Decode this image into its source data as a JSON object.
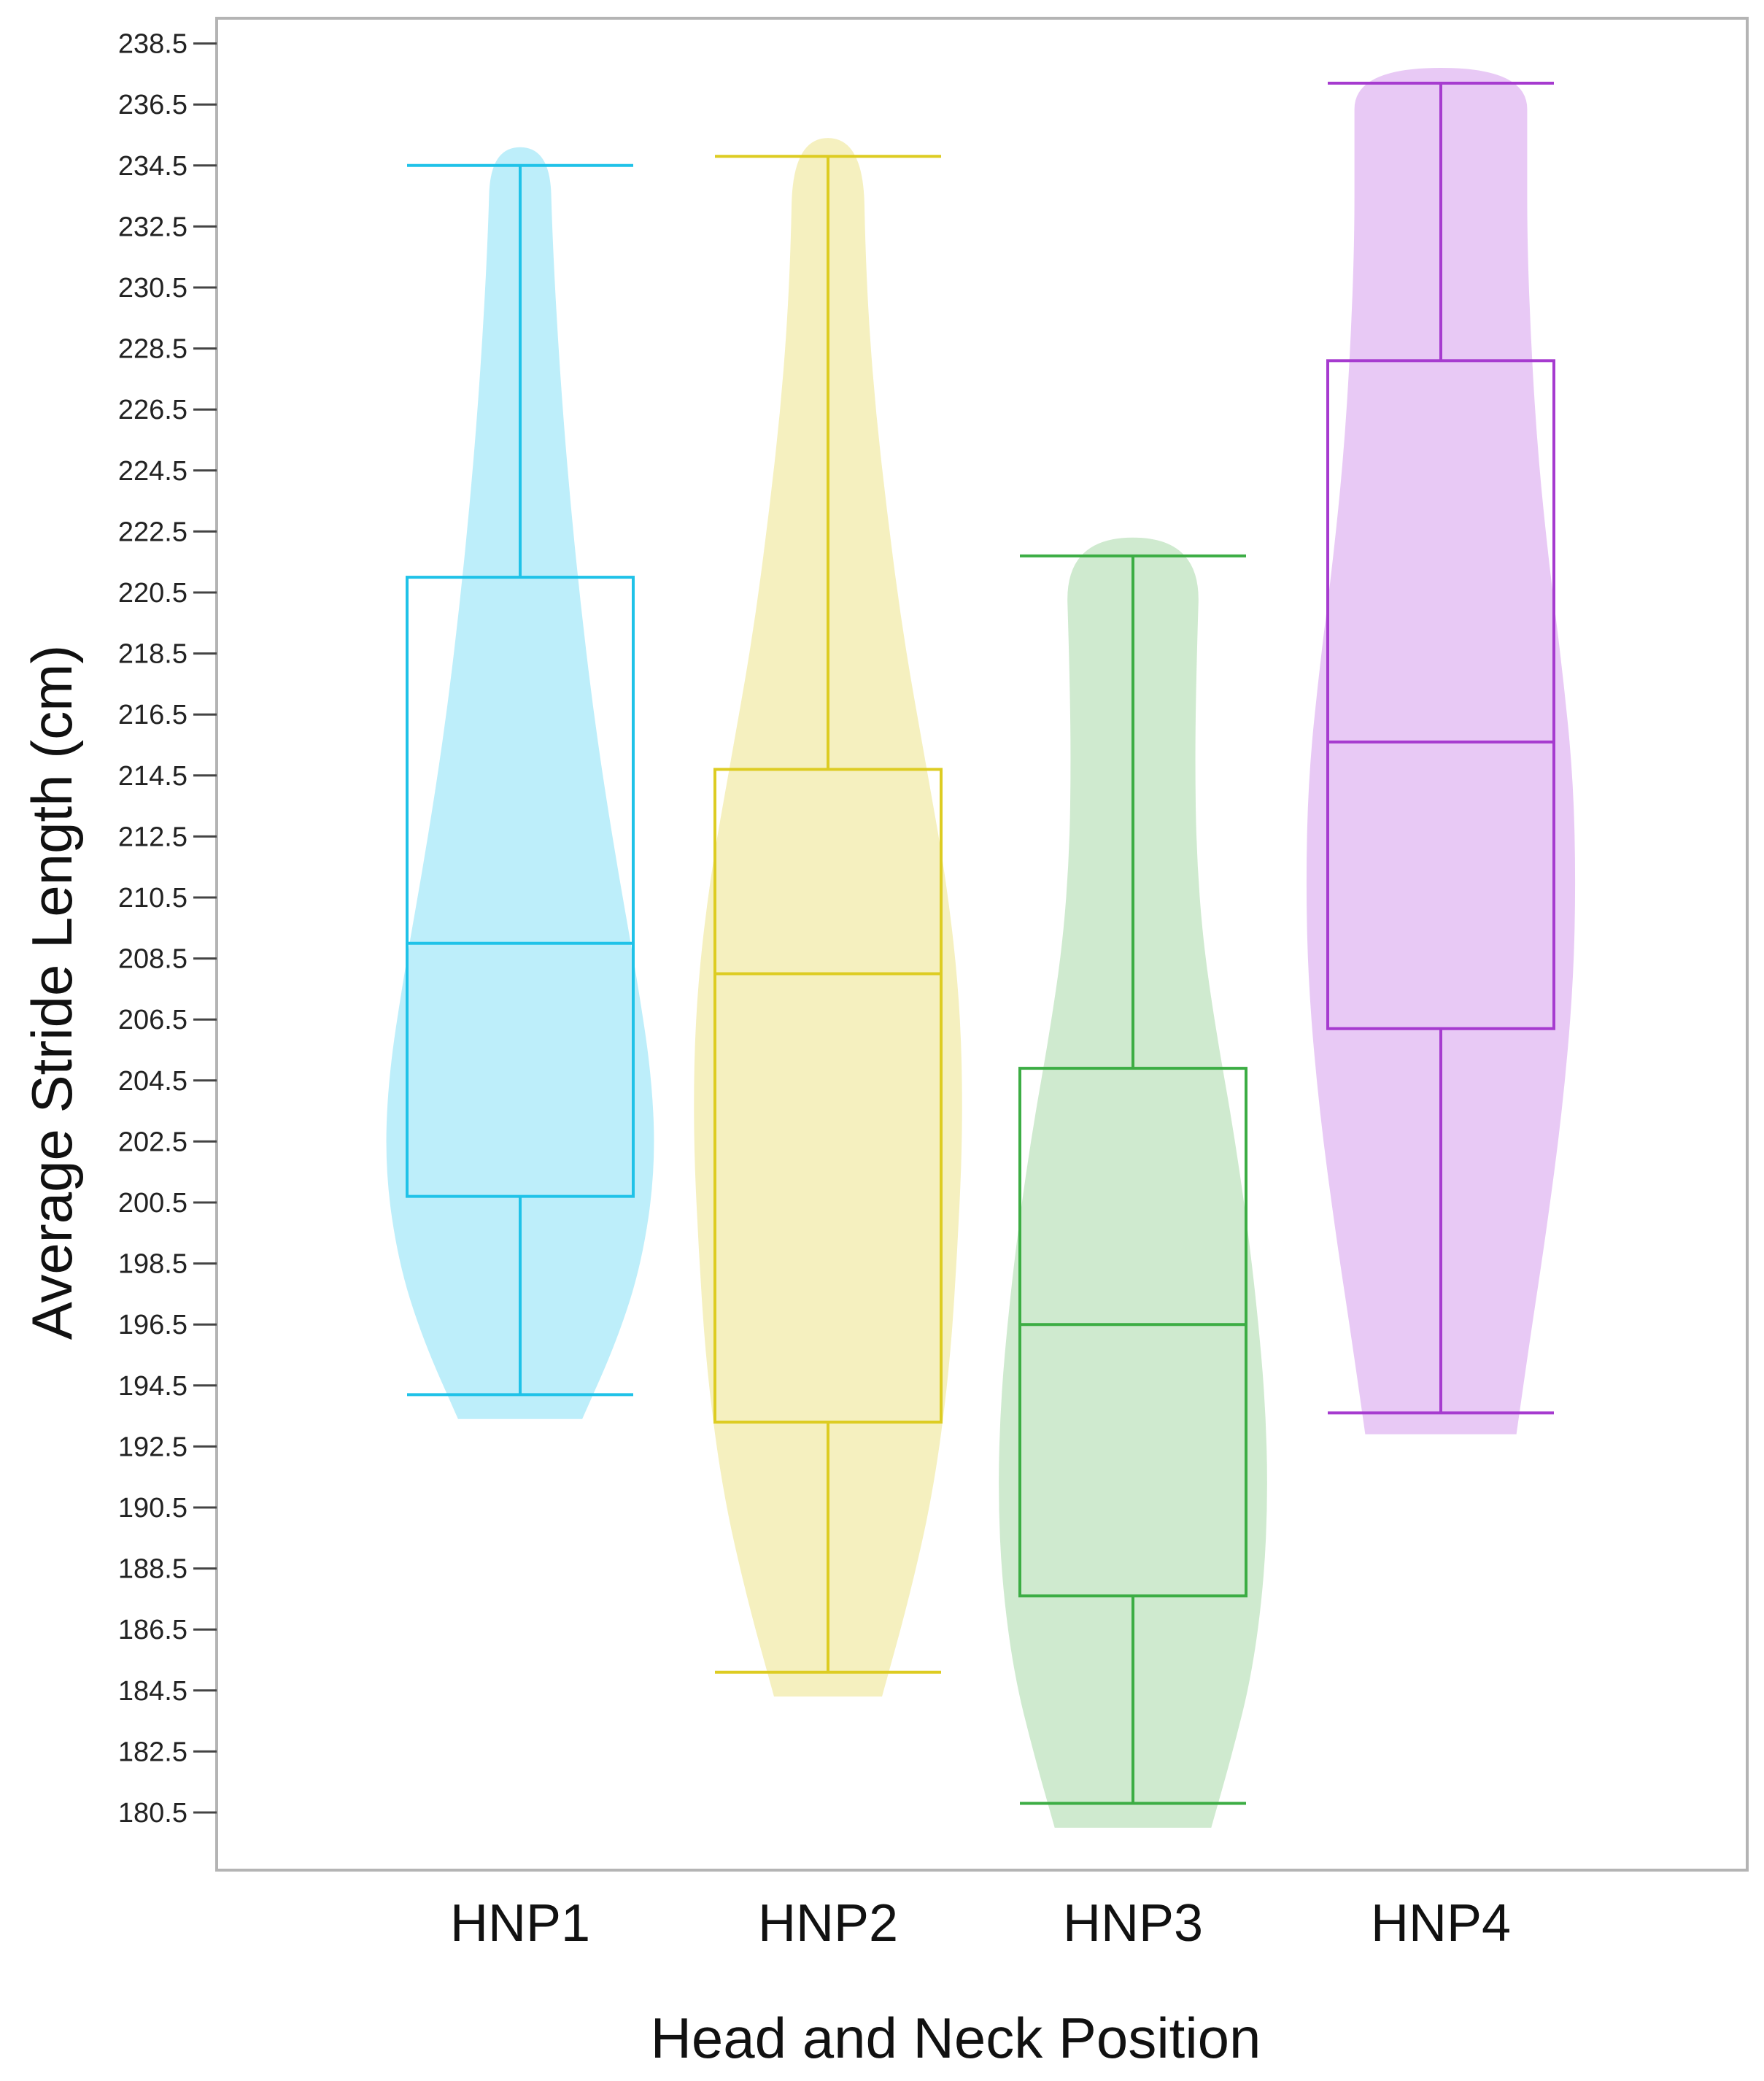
{
  "chart_data": {
    "type": "violin-box",
    "xlabel": "Head and Neck Position",
    "ylabel": "Average Stride Length (cm)",
    "ylim": [
      179.5,
      240.0
    ],
    "yticks": [
      180.5,
      182.5,
      184.5,
      186.5,
      188.5,
      190.5,
      192.5,
      194.5,
      196.5,
      198.5,
      200.5,
      202.5,
      204.5,
      206.5,
      208.5,
      210.5,
      212.5,
      214.5,
      216.5,
      218.5,
      220.5,
      222.5,
      224.5,
      226.5,
      228.5,
      230.5,
      232.5,
      234.5,
      236.5,
      238.5
    ],
    "grid": false,
    "legend": "none",
    "categories": [
      "HNP1",
      "HNP2",
      "HNP3",
      "HNP4"
    ],
    "series": [
      {
        "category": "HNP1",
        "box_color": "#1fc2e8",
        "violin_color": "#bdeefa",
        "whisker_low": 194.2,
        "q1": 200.7,
        "median": 209.0,
        "q3": 221.0,
        "whisker_high": 234.5,
        "violin_min": 193.4,
        "violin_max": 235.1,
        "violin_profile": [
          [
            193.4,
            0.46
          ],
          [
            196.0,
            0.72
          ],
          [
            198.5,
            0.9
          ],
          [
            201.5,
            1.0
          ],
          [
            204.5,
            0.98
          ],
          [
            208.0,
            0.86
          ],
          [
            212.0,
            0.7
          ],
          [
            216.0,
            0.56
          ],
          [
            220.0,
            0.45
          ],
          [
            224.0,
            0.36
          ],
          [
            228.0,
            0.29
          ],
          [
            232.0,
            0.24
          ],
          [
            235.1,
            0.22
          ]
        ]
      },
      {
        "category": "HNP2",
        "box_color": "#ddcc22",
        "violin_color": "#f5f0bf",
        "whisker_low": 185.1,
        "q1": 193.3,
        "median": 208.0,
        "q3": 214.7,
        "whisker_high": 234.8,
        "violin_min": 184.3,
        "violin_max": 235.4,
        "violin_profile": [
          [
            184.3,
            0.4
          ],
          [
            187.5,
            0.6
          ],
          [
            191.0,
            0.78
          ],
          [
            195.0,
            0.9
          ],
          [
            199.0,
            0.96
          ],
          [
            203.0,
            1.0
          ],
          [
            207.0,
            0.98
          ],
          [
            211.0,
            0.88
          ],
          [
            215.0,
            0.72
          ],
          [
            219.0,
            0.56
          ],
          [
            223.0,
            0.44
          ],
          [
            227.0,
            0.34
          ],
          [
            231.0,
            0.28
          ],
          [
            235.4,
            0.26
          ]
        ]
      },
      {
        "category": "HNP3",
        "box_color": "#3cad44",
        "violin_color": "#cfeacf",
        "whisker_low": 180.8,
        "q1": 187.6,
        "median": 196.5,
        "q3": 204.9,
        "whisker_high": 221.7,
        "violin_min": 180.0,
        "violin_max": 222.3,
        "violin_profile": [
          [
            180.0,
            0.58
          ],
          [
            182.5,
            0.74
          ],
          [
            185.0,
            0.88
          ],
          [
            188.0,
            0.97
          ],
          [
            191.0,
            1.0
          ],
          [
            194.0,
            0.98
          ],
          [
            197.0,
            0.92
          ],
          [
            200.0,
            0.84
          ],
          [
            203.0,
            0.74
          ],
          [
            206.0,
            0.62
          ],
          [
            209.0,
            0.52
          ],
          [
            212.0,
            0.47
          ],
          [
            215.0,
            0.46
          ],
          [
            218.0,
            0.47
          ],
          [
            222.3,
            0.5
          ]
        ]
      },
      {
        "category": "HNP4",
        "box_color": "#a63bcf",
        "violin_color": "#e8c9f5",
        "whisker_low": 193.6,
        "q1": 206.2,
        "median": 215.6,
        "q3": 228.1,
        "whisker_high": 237.2,
        "violin_min": 192.9,
        "violin_max": 237.7,
        "violin_profile": [
          [
            192.9,
            0.56
          ],
          [
            196.0,
            0.66
          ],
          [
            199.5,
            0.78
          ],
          [
            203.5,
            0.9
          ],
          [
            207.5,
            0.98
          ],
          [
            211.0,
            1.0
          ],
          [
            214.5,
            0.98
          ],
          [
            218.0,
            0.9
          ],
          [
            221.5,
            0.8
          ],
          [
            225.0,
            0.72
          ],
          [
            228.5,
            0.67
          ],
          [
            232.0,
            0.64
          ],
          [
            235.0,
            0.64
          ],
          [
            237.7,
            0.64
          ]
        ]
      }
    ]
  }
}
